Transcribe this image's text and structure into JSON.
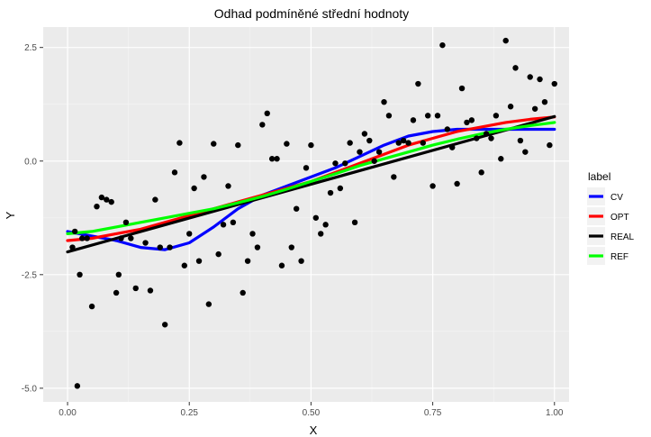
{
  "chart_data": {
    "type": "scatter",
    "title": "Odhad podmíněné střední hodnoty",
    "xlabel": "X",
    "ylabel": "Y",
    "xlim": [
      -0.05,
      1.03
    ],
    "ylim": [
      -5.3,
      2.95
    ],
    "x_ticks": [
      0.0,
      0.25,
      0.5,
      0.75,
      1.0
    ],
    "x_tick_labels": [
      "0.00",
      "0.25",
      "0.50",
      "0.75",
      "1.00"
    ],
    "y_ticks": [
      -5.0,
      -2.5,
      0.0,
      2.5
    ],
    "y_tick_labels": [
      "-5.0",
      "-2.5",
      "0.0",
      "2.5"
    ],
    "grid": true,
    "background": "#ebebeb",
    "legend": {
      "title": "label",
      "placement": "right"
    },
    "points": {
      "color": "#000000",
      "x": [
        0.01,
        0.015,
        0.02,
        0.025,
        0.03,
        0.04,
        0.05,
        0.06,
        0.07,
        0.08,
        0.09,
        0.1,
        0.105,
        0.11,
        0.12,
        0.13,
        0.14,
        0.16,
        0.17,
        0.18,
        0.19,
        0.2,
        0.21,
        0.22,
        0.23,
        0.24,
        0.25,
        0.26,
        0.27,
        0.28,
        0.29,
        0.3,
        0.31,
        0.32,
        0.33,
        0.34,
        0.35,
        0.36,
        0.37,
        0.38,
        0.39,
        0.4,
        0.41,
        0.42,
        0.43,
        0.44,
        0.45,
        0.46,
        0.47,
        0.48,
        0.49,
        0.5,
        0.51,
        0.52,
        0.53,
        0.54,
        0.55,
        0.56,
        0.57,
        0.58,
        0.59,
        0.6,
        0.61,
        0.62,
        0.63,
        0.64,
        0.65,
        0.66,
        0.67,
        0.68,
        0.69,
        0.7,
        0.71,
        0.72,
        0.73,
        0.74,
        0.75,
        0.76,
        0.77,
        0.78,
        0.79,
        0.8,
        0.81,
        0.82,
        0.83,
        0.84,
        0.85,
        0.86,
        0.87,
        0.88,
        0.89,
        0.9,
        0.91,
        0.92,
        0.93,
        0.94,
        0.95,
        0.96,
        0.97,
        0.98,
        0.99,
        1.0
      ],
      "y": [
        -1.9,
        -1.55,
        -4.95,
        -2.5,
        -1.7,
        -1.7,
        -3.2,
        -1.0,
        -0.8,
        -0.85,
        -0.9,
        -2.9,
        -2.5,
        -1.7,
        -1.35,
        -1.7,
        -2.8,
        -1.8,
        -2.85,
        -0.85,
        -1.9,
        -3.6,
        -1.9,
        -0.25,
        0.4,
        -2.3,
        -1.6,
        -0.6,
        -2.2,
        -0.35,
        -3.15,
        0.38,
        -2.05,
        -1.4,
        -0.55,
        -1.35,
        0.35,
        -2.9,
        -2.2,
        -1.6,
        -1.9,
        0.8,
        1.05,
        0.05,
        0.05,
        -2.3,
        0.38,
        -1.9,
        -1.05,
        -2.2,
        -0.15,
        0.35,
        -1.25,
        -1.6,
        -1.4,
        -0.7,
        -0.05,
        -0.6,
        -0.05,
        0.4,
        -1.35,
        0.2,
        0.6,
        0.45,
        0.0,
        0.2,
        1.3,
        1.0,
        -0.35,
        0.4,
        0.45,
        0.4,
        0.9,
        1.7,
        0.4,
        1.0,
        -0.55,
        1.0,
        2.55,
        0.7,
        0.3,
        -0.5,
        1.6,
        0.85,
        0.9,
        0.5,
        -0.25,
        0.6,
        0.5,
        1.0,
        0.05,
        2.65,
        1.2,
        2.05,
        0.45,
        0.2,
        1.85,
        1.15,
        1.8,
        1.3,
        0.35,
        1.7
      ]
    },
    "series": [
      {
        "name": "CV",
        "color": "#0000ff",
        "x": [
          0.0,
          0.05,
          0.1,
          0.15,
          0.2,
          0.25,
          0.3,
          0.35,
          0.4,
          0.45,
          0.5,
          0.55,
          0.6,
          0.65,
          0.7,
          0.75,
          0.8,
          0.85,
          0.9,
          0.95,
          1.0
        ],
        "y": [
          -1.55,
          -1.65,
          -1.75,
          -1.9,
          -1.95,
          -1.8,
          -1.45,
          -1.05,
          -0.75,
          -0.55,
          -0.35,
          -0.15,
          0.1,
          0.35,
          0.55,
          0.65,
          0.7,
          0.7,
          0.7,
          0.7,
          0.7
        ]
      },
      {
        "name": "OPT",
        "color": "#ff0000",
        "x": [
          0.0,
          0.05,
          0.1,
          0.15,
          0.2,
          0.25,
          0.3,
          0.35,
          0.4,
          0.45,
          0.5,
          0.55,
          0.6,
          0.65,
          0.7,
          0.75,
          0.8,
          0.85,
          0.9,
          0.95,
          1.0
        ],
        "y": [
          -1.75,
          -1.7,
          -1.6,
          -1.5,
          -1.35,
          -1.2,
          -1.05,
          -0.9,
          -0.75,
          -0.6,
          -0.45,
          -0.25,
          -0.05,
          0.15,
          0.35,
          0.5,
          0.65,
          0.75,
          0.85,
          0.92,
          0.97
        ]
      },
      {
        "name": "REAL",
        "color": "#000000",
        "x": [
          0.0,
          1.0
        ],
        "y": [
          -2.0,
          0.98
        ]
      },
      {
        "name": "REF",
        "color": "#00ff00",
        "x": [
          0.0,
          0.05,
          0.1,
          0.15,
          0.2,
          0.25,
          0.3,
          0.35,
          0.4,
          0.45,
          0.5,
          0.55,
          0.6,
          0.65,
          0.7,
          0.75,
          0.8,
          0.85,
          0.9,
          0.95,
          1.0
        ],
        "y": [
          -1.6,
          -1.55,
          -1.45,
          -1.35,
          -1.25,
          -1.15,
          -1.05,
          -0.92,
          -0.78,
          -0.62,
          -0.45,
          -0.28,
          -0.1,
          0.05,
          0.2,
          0.35,
          0.48,
          0.6,
          0.7,
          0.78,
          0.85
        ]
      }
    ]
  }
}
